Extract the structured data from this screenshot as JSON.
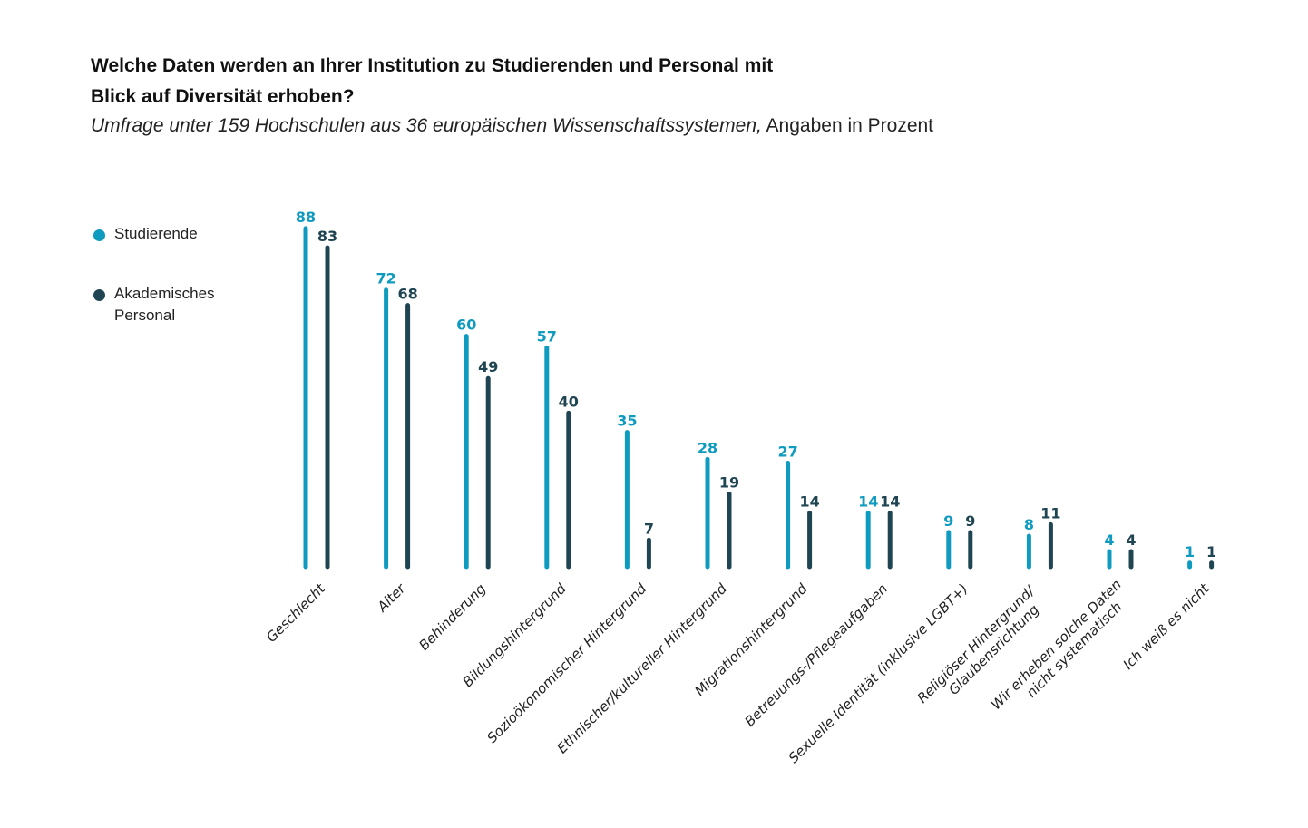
{
  "header": {
    "title": "Welche Daten werden an Ihrer Institution zu Studierenden und Personal mit Blick auf Diversität erhoben?",
    "subtitle_italic": "Umfrage unter 159 Hochschulen aus 36 europäischen Wissenschaftssystemen,",
    "subtitle_regular": " Angaben in Prozent"
  },
  "legend": {
    "items": [
      {
        "label": "Studierende",
        "color": "#0f9bbf"
      },
      {
        "label": "Akademisches Personal",
        "color": "#1f4452"
      }
    ]
  },
  "chart_data": {
    "type": "bar",
    "title": "Welche Daten werden an Ihrer Institution zu Studierenden und Personal mit Blick auf Diversität erhoben?",
    "subtitle": "Umfrage unter 159 Hochschulen aus 36 europäischen Wissenschaftssystemen, Angaben in Prozent",
    "xlabel": "",
    "ylabel": "",
    "ylim": [
      0,
      100
    ],
    "grid": false,
    "legend_position": "left",
    "categories": [
      "Geschlecht",
      "Alter",
      "Behinderung",
      "Bildungshintergrund",
      "Sozioökonomischer Hintergrund",
      "Ethnischer/kultureller Hintergrund",
      "Migrationshintergrund",
      "Betreuungs-/Pflegeaufgaben",
      "Sexuelle Identität (inklusive LGBT+)",
      "Religiöser Hintergrund/\nGlaubensrichtung",
      "Wir erheben solche Daten\nnicht systematisch",
      "Ich weiß es nicht"
    ],
    "series": [
      {
        "name": "Studierende",
        "color": "#0f9bbf",
        "values": [
          88,
          72,
          60,
          57,
          35,
          28,
          27,
          14,
          9,
          8,
          4,
          1
        ]
      },
      {
        "name": "Akademisches Personal",
        "color": "#1f4452",
        "values": [
          83,
          68,
          49,
          40,
          7,
          19,
          14,
          14,
          9,
          11,
          4,
          1
        ]
      }
    ]
  }
}
